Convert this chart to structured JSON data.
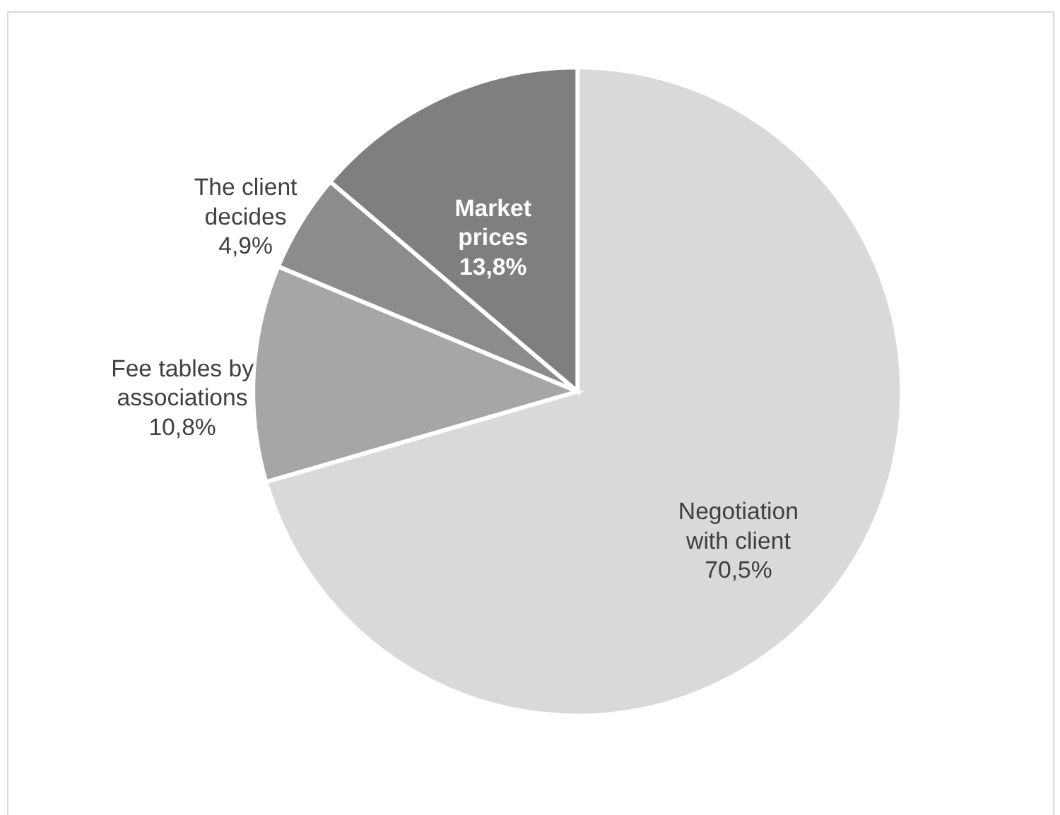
{
  "chart_data": {
    "type": "pie",
    "categories": [
      "Negotiation with client",
      "Fee tables by associations",
      "The client decides",
      "Market prices"
    ],
    "values": [
      70.5,
      10.8,
      4.9,
      13.8
    ],
    "value_labels": [
      "70,5%",
      "10,8%",
      "4,9%",
      "13,8%"
    ],
    "colors": [
      "#d9d9d9",
      "#a6a6a6",
      "#8c8c8c",
      "#7f7f7f"
    ]
  }
}
